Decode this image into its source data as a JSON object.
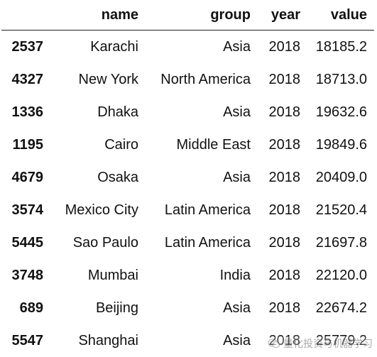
{
  "table": {
    "columns": [
      "name",
      "group",
      "year",
      "value"
    ],
    "rows": [
      {
        "index": "2537",
        "name": "Karachi",
        "group": "Asia",
        "year": "2018",
        "value": "18185.2"
      },
      {
        "index": "4327",
        "name": "New York",
        "group": "North America",
        "year": "2018",
        "value": "18713.0"
      },
      {
        "index": "1336",
        "name": "Dhaka",
        "group": "Asia",
        "year": "2018",
        "value": "19632.6"
      },
      {
        "index": "1195",
        "name": "Cairo",
        "group": "Middle East",
        "year": "2018",
        "value": "19849.6"
      },
      {
        "index": "4679",
        "name": "Osaka",
        "group": "Asia",
        "year": "2018",
        "value": "20409.0"
      },
      {
        "index": "3574",
        "name": "Mexico City",
        "group": "Latin America",
        "year": "2018",
        "value": "21520.4"
      },
      {
        "index": "5445",
        "name": "Sao Paulo",
        "group": "Latin America",
        "year": "2018",
        "value": "21697.8"
      },
      {
        "index": "3748",
        "name": "Mumbai",
        "group": "India",
        "year": "2018",
        "value": "22120.0"
      },
      {
        "index": "689",
        "name": "Beijing",
        "group": "Asia",
        "year": "2018",
        "value": "22674.2"
      },
      {
        "index": "5547",
        "name": "Shanghai",
        "group": "Asia",
        "year": "2018",
        "value": "25779.2"
      }
    ]
  },
  "watermark": {
    "text": "量化投资与机器学习",
    "icon": "wechat-icon"
  }
}
